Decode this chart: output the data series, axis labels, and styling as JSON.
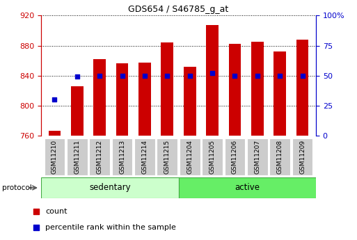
{
  "title": "GDS654 / S46785_g_at",
  "samples": [
    "GSM11210",
    "GSM11211",
    "GSM11212",
    "GSM11213",
    "GSM11214",
    "GSM11215",
    "GSM11204",
    "GSM11205",
    "GSM11206",
    "GSM11207",
    "GSM11208",
    "GSM11209"
  ],
  "count_values": [
    766,
    826,
    862,
    856,
    857,
    884,
    852,
    907,
    882,
    885,
    872,
    888
  ],
  "percentile_values": [
    30,
    49,
    50,
    50,
    50,
    50,
    50,
    52,
    50,
    50,
    50,
    50
  ],
  "ylim_left": [
    760,
    920
  ],
  "ylim_right": [
    0,
    100
  ],
  "yticks_left": [
    760,
    800,
    840,
    880,
    920
  ],
  "yticks_right": [
    0,
    25,
    50,
    75,
    100
  ],
  "bar_color": "#cc0000",
  "dot_color": "#0000cc",
  "bar_width": 0.55,
  "sedentary_color": "#ccffcc",
  "active_color": "#66ee66",
  "protocol_label": "protocol",
  "legend_count": "count",
  "legend_percentile": "percentile rank within the sample",
  "ylabel_left_color": "#cc0000",
  "ylabel_right_color": "#0000cc",
  "xtick_bg_color": "#cccccc",
  "n_sedentary": 6,
  "n_active": 6
}
